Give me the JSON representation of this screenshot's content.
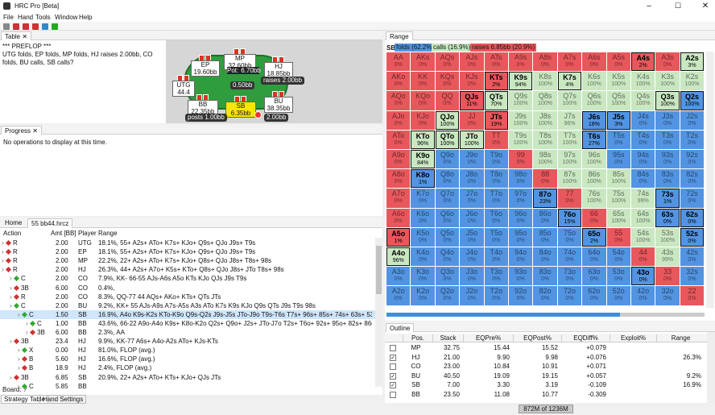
{
  "window": {
    "title": "HRC Pro [Beta]",
    "menu": [
      "File",
      "Hand",
      "Tools",
      "Window",
      "Help"
    ]
  },
  "table_panel": {
    "tab": "Table",
    "log": [
      "*** PREFLOP ***",
      "UTG folds, EP folds, MP folds, HJ raises 2.00bb, CO folds, BU calls, SB calls?"
    ],
    "seats": [
      {
        "label": "EP",
        "stack": "19.60bb"
      },
      {
        "label": "MP",
        "stack": "32.60bb"
      },
      {
        "label": "HJ",
        "stack": "18.85bb"
      },
      {
        "label": "UTG",
        "stack": "44.4"
      },
      {
        "label": "BB",
        "stack": "22.35bb"
      },
      {
        "label": "SB",
        "stack": "6.35bb"
      },
      {
        "label": "BU",
        "stack": "38.35bb"
      }
    ],
    "pot": "Pot:",
    "pot_amount": "6.70bb",
    "bets": [
      "0.50bb",
      "raises 2.00bb",
      "posts 1.00bb",
      "2.00bb"
    ]
  },
  "progress_panel": {
    "tab": "Progress",
    "message": "No operations to display at this time."
  },
  "tree_panel": {
    "tabs": [
      "Home",
      "55 bb44.hrcz"
    ],
    "columns": [
      "Action",
      "Amt [BB]",
      "Player",
      "Range"
    ],
    "selected_row": 8,
    "rows": [
      [
        "R",
        "2.00",
        "UTG",
        "18.1%, 55+ A2s+ ATo+ K7s+ KJo+ Q9s+ QJo J9s+ T9s"
      ],
      [
        "R",
        "2.00",
        "EP",
        "18.1%, 55+ A2s+ ATo+ K7s+ KJo+ Q9s+ QJo J9s+ T9s"
      ],
      [
        "R",
        "2.00",
        "MP",
        "22.2%, 22+ A2s+ ATo+ K7s+ KJo+ Q8s+ QJo J8s+ T8s+ 98s"
      ],
      [
        "R",
        "2.00",
        "HJ",
        "26.3%, 44+ A2s+ A7o+ K5s+ KTo+ Q8s+ QJo J8s+ JTo T8s+ 98s"
      ],
      [
        "C",
        "2.00",
        "CO",
        "7.9%, KK- 66-55 AJs-A6s A5o KTs KJo QJs J9s T9s"
      ],
      [
        "3B",
        "6.00",
        "CO",
        "0.4%,"
      ],
      [
        "R",
        "2.00",
        "CO",
        "8.3%, QQ-77 44 AQs+ AKo+ KTs+ QTs JTs"
      ],
      [
        "C",
        "2.00",
        "BU",
        "9.2%, KK+ 55 AJs-A9s A7s-A5s A3s ATo K7s K9s KJo Q9s QTs J9s T9s 98s"
      ],
      [
        "C",
        "1.50",
        "SB",
        "16.9%, A4o K9s-K2s KTo-K9o Q9s-Q2s J9s-J5s JTo-J9o T9s-T6s T7s+ 96s+ 85s+ 74s+ 63s+ 53s+ 43s"
      ],
      [
        "C",
        "1.00",
        "BB",
        "43.6%, 66-22 A9o-A4o K9s+ K8o-K2o Q2s+ Q9o+ J2s+ JTo-J7o T2s+ T6o+ 92s+ 95o+ 82s+ 86o+ 73s+ 75o+ 63s+"
      ],
      [
        "3B",
        "6.00",
        "BB",
        "2.3%, AA"
      ],
      [
        "3B",
        "23.4",
        "HJ",
        "9.9%, KK-77 A6s+ A4o-A2s ATo+ KJs-KTs"
      ],
      [
        "X",
        "0.00",
        "HJ",
        "81.0%, FLOP (avg.)"
      ],
      [
        "B",
        "5.60",
        "HJ",
        "16.6%, FLOP (avg.)"
      ],
      [
        "B",
        "18.9",
        "HJ",
        "2.4%, FLOP (avg.)"
      ],
      [
        "3B",
        "6.85",
        "SB",
        "20.9%, 22+ A2s+ ATo+ KTs+ KJo+ QJs JTs"
      ],
      [
        "C",
        "5.85",
        "BB",
        ""
      ]
    ],
    "board": "Board: ?",
    "bottom_tabs": [
      "Strategy Table",
      "Hand Settings"
    ]
  },
  "range_panel": {
    "tab": "Range",
    "player": "SB:",
    "legend": [
      {
        "label": "folds (62.2%)",
        "color": "#5294e2"
      },
      {
        "label": "calls (16.9%)",
        "color": "#c9e7c1"
      },
      {
        "label": "raises 6.85bb (20.9%)",
        "color": "#e8575c"
      }
    ],
    "rows": [
      {
        "hands": [
          "AA",
          "AKs",
          "AQs",
          "AJs",
          "ATs",
          "A9s",
          "A8s",
          "A7s",
          "A6s",
          "A5s",
          "A4s",
          "A3s",
          "A2s"
        ],
        "pcts": [
          "0%",
          "0%",
          "0%",
          "0%",
          "0%",
          "0%",
          "0%",
          "0%",
          "0%",
          "0%",
          "2%",
          "0%",
          "3%"
        ],
        "actions": "rrrrrrrrrrRrC"
      },
      {
        "hands": [
          "AKo",
          "KK",
          "KQs",
          "KJs",
          "KTs",
          "K9s",
          "K8s",
          "K7s",
          "K6s",
          "K5s",
          "K4s",
          "K3s",
          "K2s"
        ],
        "pcts": [
          "0%",
          "0%",
          "0%",
          "0%",
          "2%",
          "94%",
          "100%",
          "4%",
          "100%",
          "100%",
          "100%",
          "100%",
          "100%"
        ],
        "actions": "rrrrRCcCccccc"
      },
      {
        "hands": [
          "AQo",
          "KQo",
          "QQ",
          "QJs",
          "QTs",
          "Q9s",
          "Q8s",
          "Q7s",
          "Q6s",
          "Q5s",
          "Q4s",
          "Q3s",
          "Q2s"
        ],
        "pcts": [
          "0%",
          "0%",
          "0%",
          "11%",
          "70%",
          "100%",
          "100%",
          "100%",
          "100%",
          "100%",
          "100%",
          "100%",
          "100%"
        ],
        "actions": "rrrRCccccccCF"
      },
      {
        "hands": [
          "AJo",
          "KJo",
          "QJo",
          "JJ",
          "JTs",
          "J9s",
          "J8s",
          "J7s",
          "J6s",
          "J5s",
          "J4s",
          "J3s",
          "J2s"
        ],
        "pcts": [
          "0%",
          "0%",
          "100%",
          "0%",
          "19%",
          "100%",
          "100%",
          "96%",
          "18%",
          "3%",
          "0%",
          "0%",
          "0%"
        ],
        "actions": "rrCrRcccFFfff"
      },
      {
        "hands": [
          "ATo",
          "KTo",
          "QTo",
          "JTo",
          "TT",
          "T9s",
          "T8s",
          "T7s",
          "T6s",
          "T5s",
          "T4s",
          "T3s",
          "T2s"
        ],
        "pcts": [
          "0%",
          "96%",
          "100%",
          "100%",
          "0%",
          "100%",
          "100%",
          "100%",
          "27%",
          "0%",
          "0%",
          "0%",
          "0%"
        ],
        "actions": "rCCCrcccFffff"
      },
      {
        "hands": [
          "A9o",
          "K9o",
          "Q9o",
          "J9o",
          "T9o",
          "99",
          "98s",
          "97s",
          "96s",
          "95s",
          "94s",
          "93s",
          "92s"
        ],
        "pcts": [
          "0%",
          "84%",
          "0%",
          "0%",
          "0%",
          "0%",
          "100%",
          "100%",
          "100%",
          "0%",
          "0%",
          "0%",
          "0%"
        ],
        "actions": "rCfffrcccffff"
      },
      {
        "hands": [
          "A8o",
          "K8o",
          "Q8o",
          "J8o",
          "T8o",
          "98o",
          "88",
          "87s",
          "86s",
          "85s",
          "84s",
          "83s",
          "82s"
        ],
        "pcts": [
          "0%",
          "1%",
          "0%",
          "0%",
          "0%",
          "0%",
          "0%",
          "100%",
          "100%",
          "100%",
          "0%",
          "0%",
          "0%"
        ],
        "actions": "rFffffrcccfff"
      },
      {
        "hands": [
          "A7o",
          "K7o",
          "Q7o",
          "J7o",
          "T7o",
          "97o",
          "87o",
          "77",
          "76s",
          "75s",
          "74s",
          "73s",
          "72s"
        ],
        "pcts": [
          "0%",
          "0%",
          "0%",
          "0%",
          "0%",
          "0%",
          "23%",
          "0%",
          "100%",
          "100%",
          "99%",
          "1%",
          "0%"
        ],
        "actions": "rfffffFrcccFf"
      },
      {
        "hands": [
          "A6o",
          "K6o",
          "Q6o",
          "J6o",
          "T6o",
          "96o",
          "86o",
          "76o",
          "66",
          "65s",
          "64s",
          "63s",
          "62s"
        ],
        "pcts": [
          "0%",
          "0%",
          "0%",
          "0%",
          "0%",
          "0%",
          "0%",
          "15%",
          "0%",
          "100%",
          "100%",
          "0%",
          "0%"
        ],
        "actions": "rffffffFrccFF"
      },
      {
        "hands": [
          "A5o",
          "K5o",
          "Q5o",
          "J5o",
          "T5o",
          "95o",
          "85o",
          "75o",
          "65o",
          "55",
          "54s",
          "53s",
          "52s"
        ],
        "pcts": [
          "1%",
          "0%",
          "0%",
          "0%",
          "0%",
          "0%",
          "0%",
          "0%",
          "2%",
          "0%",
          "100%",
          "100%",
          "0%"
        ],
        "actions": "RfffffffFrccF"
      },
      {
        "hands": [
          "A4o",
          "K4o",
          "Q4o",
          "J4o",
          "T4o",
          "94o",
          "84o",
          "74o",
          "64o",
          "54o",
          "44",
          "43s",
          "42s"
        ],
        "pcts": [
          "96%",
          "0%",
          "0%",
          "0%",
          "0%",
          "0%",
          "0%",
          "0%",
          "0%",
          "0%",
          "0%",
          "99%",
          "0%"
        ],
        "actions": "Cfffffffffrcf"
      },
      {
        "hands": [
          "A3o",
          "K3o",
          "Q3o",
          "J3o",
          "T3o",
          "93o",
          "83o",
          "73o",
          "63o",
          "53o",
          "43o",
          "33",
          "32s"
        ],
        "pcts": [
          "0%",
          "0%",
          "0%",
          "0%",
          "0%",
          "0%",
          "0%",
          "0%",
          "0%",
          "0%",
          "0%",
          "0%",
          "0%"
        ],
        "actions": "ffffffffffFrf"
      },
      {
        "hands": [
          "A2o",
          "K2o",
          "Q2o",
          "J2o",
          "T2o",
          "92o",
          "82o",
          "72o",
          "62o",
          "52o",
          "42o",
          "32o",
          "22"
        ],
        "pcts": [
          "0%",
          "0%",
          "0%",
          "0%",
          "0%",
          "0%",
          "0%",
          "0%",
          "0%",
          "0%",
          "0%",
          "0%",
          "0%"
        ],
        "actions": "ffffffffffffr"
      }
    ]
  },
  "outline_panel": {
    "tab": "Outline",
    "columns": [
      "Pos.",
      "Stack",
      "EQPre%",
      "EQPost%",
      "EQDiff%",
      "Exploit%",
      "Range"
    ],
    "rows": [
      {
        "checked": false,
        "cells": [
          "MP",
          "32.75",
          "15.44",
          "15.52",
          "+0.079",
          "",
          ""
        ]
      },
      {
        "checked": true,
        "cells": [
          "HJ",
          "21.00",
          "9.90",
          "9.98",
          "+0.076",
          "",
          "26.3%"
        ]
      },
      {
        "checked": false,
        "cells": [
          "CO",
          "23.00",
          "10.84",
          "10.91",
          "+0.071",
          "",
          ""
        ]
      },
      {
        "checked": true,
        "cells": [
          "BU",
          "40.50",
          "19.09",
          "19.15",
          "+0.057",
          "",
          "9.2%"
        ]
      },
      {
        "checked": true,
        "cells": [
          "SB",
          "7.00",
          "3.30",
          "3.19",
          "-0.109",
          "",
          "16.9%"
        ]
      },
      {
        "checked": false,
        "cells": [
          "BB",
          "23.50",
          "11.08",
          "10.77",
          "-0.309",
          "",
          ""
        ]
      }
    ]
  },
  "status_bar": {
    "memory": "872M of 1236M"
  }
}
